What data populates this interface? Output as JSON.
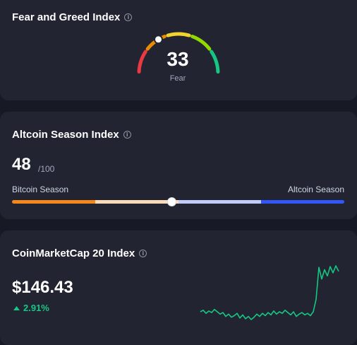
{
  "fear_greed": {
    "title": "Fear and Greed Index",
    "value": "33",
    "label": "Fear",
    "gauge_value": 33,
    "gauge_max": 100,
    "segment_colors": [
      "#ea3943",
      "#ea8c00",
      "#f3d42f",
      "#93d900",
      "#16c784"
    ]
  },
  "altcoin_season": {
    "title": "Altcoin Season Index",
    "value": "48",
    "max_text": "/100",
    "value_numeric": 48,
    "left_label": "Bitcoin Season",
    "right_label": "Altcoin Season",
    "segment_colors": [
      "#f68819",
      "#fcdbb9",
      "#c1ccfd",
      "#3156fa"
    ]
  },
  "cmc20": {
    "title": "CoinMarketCap 20 Index",
    "value": "$146.43",
    "change": "2.91%",
    "change_icon": "caret-up-icon",
    "change_color": "#16c784"
  },
  "chart_data": {
    "type": "line",
    "series": [
      {
        "values": [
          141.2,
          141.4,
          141.0,
          141.3,
          141.1,
          141.5,
          141.2,
          140.9,
          141.1,
          140.6,
          140.9,
          140.5,
          140.7,
          141.0,
          140.4,
          140.8,
          140.3,
          140.6,
          140.2,
          140.5,
          140.9,
          140.6,
          141.0,
          140.7,
          141.1,
          140.8,
          141.3,
          140.9,
          141.2,
          141.0,
          141.4,
          141.1,
          140.8,
          141.2,
          140.6,
          140.9,
          141.1,
          140.8,
          141.0,
          140.7,
          141.2,
          142.8,
          146.9,
          145.4,
          146.6,
          145.8,
          147.0,
          146.2,
          147.1,
          146.4
        ]
      }
    ]
  }
}
